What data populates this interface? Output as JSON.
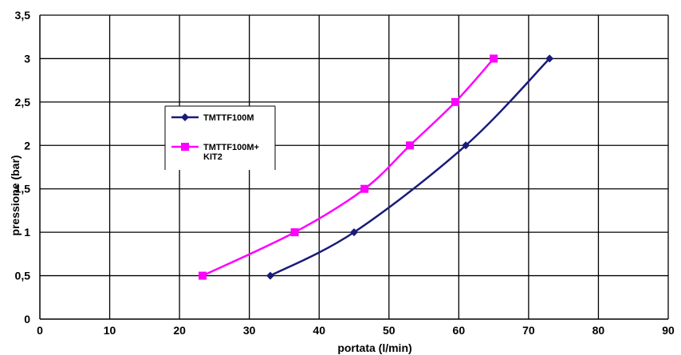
{
  "chart_data": {
    "type": "line",
    "xlabel": "portata (l/min)",
    "ylabel": "pressione (bar)",
    "xlim": [
      0,
      90
    ],
    "ylim": [
      0,
      3.5
    ],
    "x_ticks": [
      "0",
      "10",
      "20",
      "30",
      "40",
      "50",
      "60",
      "70",
      "80",
      "90"
    ],
    "y_ticks": [
      "0",
      "0,5",
      "1",
      "1,5",
      "2",
      "2,5",
      "3",
      "3,5"
    ],
    "grid": true,
    "legend_position": "upper-left-center",
    "series": [
      {
        "name": "TMTTF100M",
        "color": "#1a1a7a",
        "marker": "diamond",
        "points": [
          [
            33,
            0.5
          ],
          [
            45,
            1.0
          ],
          [
            61,
            2.0
          ],
          [
            73,
            3.0
          ]
        ]
      },
      {
        "name": "TMTTF100M+ KIT2",
        "name_lines": [
          "TMTTF100M+",
          "KIT2"
        ],
        "color": "#ff00ff",
        "marker": "square",
        "points": [
          [
            23.3,
            0.5
          ],
          [
            36.5,
            1.0
          ],
          [
            46.5,
            1.5
          ],
          [
            53,
            2.0
          ],
          [
            59.5,
            2.5
          ],
          [
            65,
            3.0
          ]
        ]
      }
    ]
  }
}
